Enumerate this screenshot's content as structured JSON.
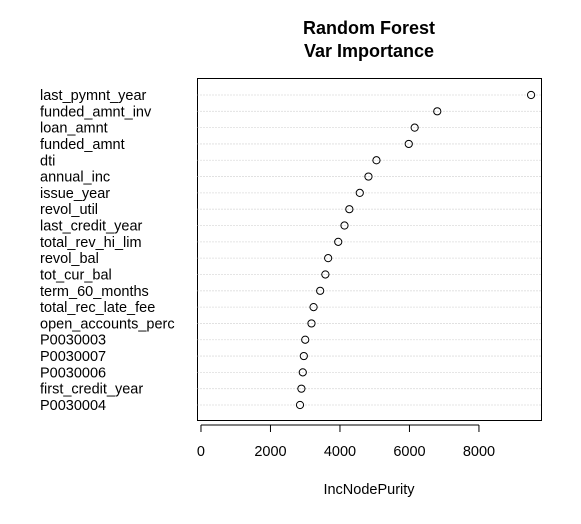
{
  "chart_data": {
    "type": "scatter",
    "title": "Random Forest",
    "subtitle": "Var Importance",
    "xlabel": "IncNodePurity",
    "ylabel": "",
    "xlim": [
      -100,
      9800
    ],
    "xticks": [
      0,
      2000,
      4000,
      6000,
      8000
    ],
    "xtick_labels": [
      "0",
      "2000",
      "4000",
      "6000",
      "8000"
    ],
    "grid": "dotted horizontal lines",
    "marker": "open circle",
    "categories": [
      "last_pymnt_year",
      "funded_amnt_inv",
      "loan_amnt",
      "funded_amnt",
      "dti",
      "annual_inc",
      "issue_year",
      "revol_util",
      "last_credit_year",
      "total_rev_hi_lim",
      "revol_bal",
      "tot_cur_bal",
      "term_60_months",
      "total_rec_late_fee",
      "open_accounts_perc",
      "P0030003",
      "P0030007",
      "P0030006",
      "first_credit_year",
      "P0030004"
    ],
    "values": [
      9500,
      6800,
      6150,
      5980,
      5050,
      4820,
      4570,
      4270,
      4130,
      3950,
      3660,
      3580,
      3430,
      3240,
      3180,
      3000,
      2960,
      2930,
      2890,
      2850
    ]
  }
}
